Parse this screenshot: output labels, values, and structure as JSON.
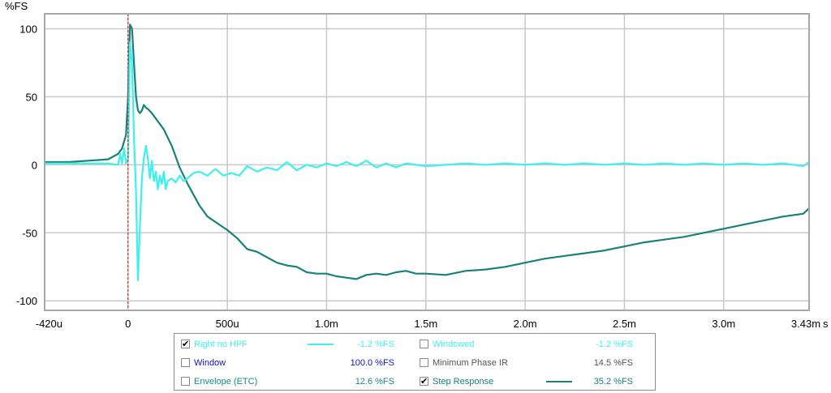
{
  "chart_data": {
    "type": "line",
    "y_unit": "%FS",
    "x_unit": "s",
    "x_ticks": [
      "-420u",
      "0",
      "500u",
      "1.0m",
      "1.5m",
      "2.0m",
      "2.5m",
      "3.0m",
      "3.43m"
    ],
    "x_tick_values": [
      -0.00042,
      0,
      0.0005,
      0.001,
      0.0015,
      0.002,
      0.0025,
      0.003,
      0.00343
    ],
    "y_ticks": [
      "100",
      "50",
      "0",
      "-50",
      "-100"
    ],
    "y_tick_values": [
      100,
      50,
      0,
      -50,
      -100
    ],
    "xlim": [
      -0.00042,
      0.00343
    ],
    "ylim": [
      -107,
      111
    ],
    "grid": true,
    "marker_x": 0,
    "series": [
      {
        "name": "Right no HPF",
        "color": "#3ef0ee",
        "x": [
          -0.00042,
          -0.0003,
          -0.0002,
          -0.0001,
          -5e-05,
          -4e-05,
          -3e-05,
          -2e-05,
          -1e-05,
          0,
          1e-05,
          2e-05,
          3e-05,
          4e-05,
          5e-05,
          6e-05,
          7e-05,
          8e-05,
          9e-05,
          0.0001,
          0.00011,
          0.00012,
          0.00013,
          0.00014,
          0.00015,
          0.00016,
          0.00017,
          0.00018,
          0.00019,
          0.0002,
          0.00022,
          0.00024,
          0.00026,
          0.00028,
          0.0003,
          0.00033,
          0.00036,
          0.0004,
          0.00044,
          0.00048,
          0.00052,
          0.00056,
          0.0006,
          0.00065,
          0.0007,
          0.00075,
          0.0008,
          0.00085,
          0.0009,
          0.00095,
          0.001,
          0.00105,
          0.0011,
          0.00115,
          0.0012,
          0.00125,
          0.0013,
          0.00135,
          0.0014,
          0.00145,
          0.0015,
          0.0016,
          0.0017,
          0.0018,
          0.0019,
          0.002,
          0.0021,
          0.0022,
          0.0023,
          0.0024,
          0.0025,
          0.0026,
          0.0027,
          0.0028,
          0.0029,
          0.003,
          0.0031,
          0.0032,
          0.0033,
          0.0034,
          0.00343
        ],
        "y": [
          1,
          1,
          1,
          1,
          0,
          8,
          1,
          12,
          1,
          5,
          90,
          75,
          20,
          -20,
          -85,
          -45,
          -10,
          5,
          14,
          5,
          -10,
          3,
          -12,
          -5,
          -18,
          -8,
          -14,
          -5,
          -18,
          -12,
          -10,
          -13,
          -8,
          -12,
          -10,
          -6,
          -5,
          -8,
          -3,
          -8,
          -6,
          -8,
          -1,
          -5,
          -2,
          -4,
          2,
          -4,
          0,
          -2,
          1,
          -1,
          2,
          -1,
          3,
          -2,
          1,
          -2,
          1,
          0,
          -1,
          0,
          1,
          0,
          1,
          0,
          1,
          0,
          1,
          0,
          1,
          0,
          1,
          0,
          1,
          0,
          1,
          0,
          1,
          -1,
          2
        ]
      },
      {
        "name": "Step Response",
        "color": "#1a807a",
        "x": [
          -0.00042,
          -0.0003,
          -0.0002,
          -0.0001,
          -5e-05,
          -3e-05,
          -1e-05,
          0,
          1e-05,
          2e-05,
          3e-05,
          4e-05,
          5e-05,
          6e-05,
          7e-05,
          8e-05,
          9e-05,
          0.0001,
          0.00012,
          0.00014,
          0.00016,
          0.00018,
          0.0002,
          0.00022,
          0.00024,
          0.00026,
          0.00028,
          0.0003,
          0.00033,
          0.00036,
          0.0004,
          0.00045,
          0.0005,
          0.00055,
          0.0006,
          0.00065,
          0.0007,
          0.00075,
          0.0008,
          0.00085,
          0.0009,
          0.00095,
          0.001,
          0.00105,
          0.0011,
          0.00115,
          0.0012,
          0.00125,
          0.0013,
          0.00135,
          0.0014,
          0.00145,
          0.0015,
          0.0016,
          0.0017,
          0.0018,
          0.0019,
          0.002,
          0.0021,
          0.0022,
          0.0023,
          0.0024,
          0.0025,
          0.0026,
          0.0027,
          0.0028,
          0.0029,
          0.003,
          0.0031,
          0.0032,
          0.0033,
          0.0034,
          0.00343
        ],
        "y": [
          2,
          2,
          3,
          4,
          8,
          12,
          22,
          50,
          103,
          100,
          75,
          50,
          40,
          38,
          40,
          44,
          42,
          41,
          38,
          34,
          30,
          26,
          20,
          14,
          6,
          -2,
          -8,
          -14,
          -22,
          -30,
          -38,
          -43,
          -48,
          -54,
          -62,
          -64,
          -68,
          -72,
          -74,
          -75,
          -79,
          -80,
          -80,
          -82,
          -83,
          -84,
          -81,
          -80,
          -81,
          -79,
          -78,
          -80,
          -80,
          -81,
          -78,
          -77,
          -75,
          -72,
          -69,
          -67,
          -65,
          -63,
          -60,
          -57,
          -55,
          -53,
          -50,
          -47,
          -44,
          -41,
          -38,
          -36,
          -32
        ]
      }
    ]
  },
  "legend": {
    "items": [
      {
        "label": "Right no HPF",
        "checked": true,
        "value": "-1.2 %FS",
        "color": "#3ef0ee",
        "swatch": "#3ef0ee"
      },
      {
        "label": "Windowed",
        "checked": false,
        "value": "-1.2 %FS",
        "color": "#3ef0ee",
        "swatch": ""
      },
      {
        "label": "Window",
        "checked": false,
        "value": "100.0 %FS",
        "color": "#0a14c8",
        "swatch": ""
      },
      {
        "label": "Minimum Phase IR",
        "checked": false,
        "value": "14.5 %FS",
        "color": "#555555",
        "swatch": ""
      },
      {
        "label": "Envelope (ETC)",
        "checked": false,
        "value": "12.6 %FS",
        "color": "#1a8a80",
        "swatch": ""
      },
      {
        "label": "Step Response",
        "checked": true,
        "value": "35.2 %FS",
        "color": "#1a807a",
        "swatch": "#1a807a"
      }
    ]
  }
}
